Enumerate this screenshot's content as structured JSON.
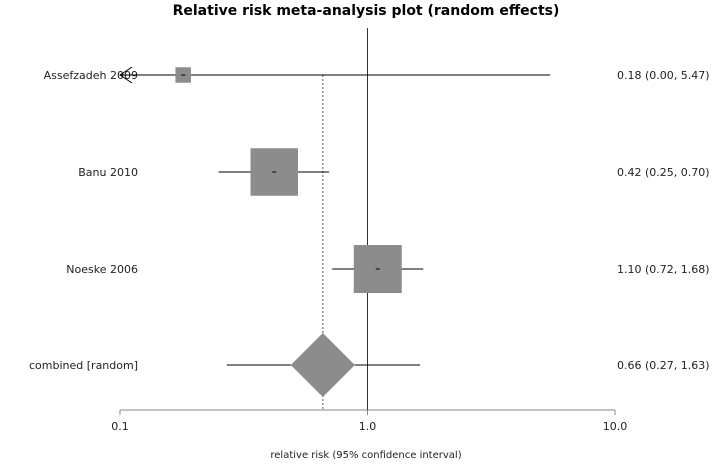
{
  "chart_data": {
    "type": "forest",
    "title": "Relative risk meta-analysis plot (random effects)",
    "xlabel": "relative risk (95% confidence interval)",
    "x_scale": "log",
    "xlim": [
      0.1,
      10.0
    ],
    "x_ticks": [
      {
        "value": 0.1,
        "label": "0.1"
      },
      {
        "value": 1.0,
        "label": "1.0"
      },
      {
        "value": 10.0,
        "label": "10.0"
      }
    ],
    "null_line": 1.0,
    "pooled_line": 0.66,
    "color": "#8c8c8c",
    "studies": [
      {
        "label": "Assefzadeh 2009",
        "est": 0.18,
        "lo": 0.0,
        "hi": 5.47,
        "text": "0.18 (0.00, 5.47)",
        "weight": 0.05,
        "lo_clipped": true
      },
      {
        "label": "Banu 2010",
        "est": 0.42,
        "lo": 0.25,
        "hi": 0.7,
        "text": "0.42 (0.25, 0.70)",
        "weight": 0.47
      },
      {
        "label": "Noeske 2006",
        "est": 1.1,
        "lo": 0.72,
        "hi": 1.68,
        "text": "1.10 (0.72, 1.68)",
        "weight": 0.48
      }
    ],
    "combined": {
      "label": "combined [random]",
      "est": 0.66,
      "lo": 0.27,
      "hi": 1.63,
      "text": "0.66 (0.27, 1.63)"
    }
  }
}
